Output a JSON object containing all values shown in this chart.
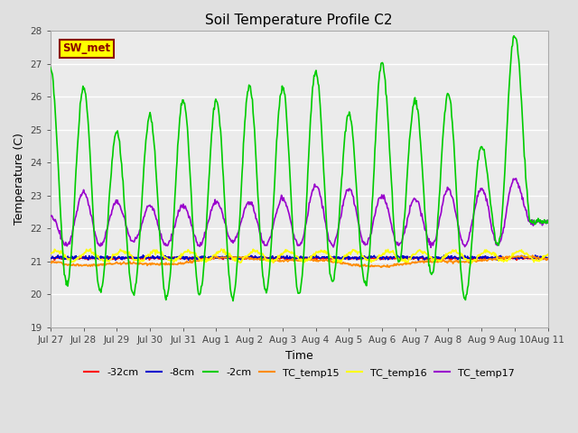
{
  "title": "Soil Temperature Profile C2",
  "xlabel": "Time",
  "ylabel": "Temperature (C)",
  "ylim": [
    19.0,
    28.0
  ],
  "yticks": [
    19.0,
    20.0,
    21.0,
    22.0,
    23.0,
    24.0,
    25.0,
    26.0,
    27.0,
    28.0
  ],
  "xtick_labels": [
    "Jul 27",
    "Jul 28",
    "Jul 29",
    "Jul 30",
    "Jul 31",
    "Aug 1",
    "Aug 2",
    "Aug 3",
    "Aug 4",
    "Aug 5",
    "Aug 6",
    "Aug 7",
    "Aug 8",
    "Aug 9",
    "Aug 10",
    "Aug 11"
  ],
  "background_color": "#e0e0e0",
  "plot_bg_color": "#ebebeb",
  "watermark": "SW_met",
  "watermark_bg": "#ffff00",
  "watermark_border": "#8b0000",
  "watermark_text_color": "#8b0000",
  "series": {
    "-32cm": {
      "color": "#ff0000",
      "lw": 1.2
    },
    "-8cm": {
      "color": "#0000cd",
      "lw": 1.2
    },
    "-2cm": {
      "color": "#00cc00",
      "lw": 1.2
    },
    "TC_temp15": {
      "color": "#ff8c00",
      "lw": 1.2
    },
    "TC_temp16": {
      "color": "#ffff00",
      "lw": 1.2
    },
    "TC_temp17": {
      "color": "#9900cc",
      "lw": 1.2
    }
  },
  "green_peaks": [
    26.8,
    20.3,
    26.3,
    20.1,
    24.9,
    20.0,
    25.4,
    19.9,
    25.9,
    20.0,
    25.9,
    19.9,
    26.3,
    20.1,
    26.3,
    20.0,
    26.8,
    20.4,
    25.5,
    20.3,
    27.0,
    21.0,
    25.9,
    20.6,
    26.1,
    19.9,
    24.5,
    21.5,
    27.9,
    22.2
  ],
  "purple_peaks": [
    22.4,
    21.5,
    23.1,
    21.5,
    22.8,
    21.6,
    22.7,
    21.5,
    22.7,
    21.5,
    22.8,
    21.6,
    22.8,
    21.5,
    22.9,
    21.5,
    23.3,
    21.5,
    23.2,
    21.5,
    23.0,
    21.5,
    22.9,
    21.5,
    23.2,
    21.5,
    23.2,
    21.5,
    23.5,
    22.2
  ]
}
